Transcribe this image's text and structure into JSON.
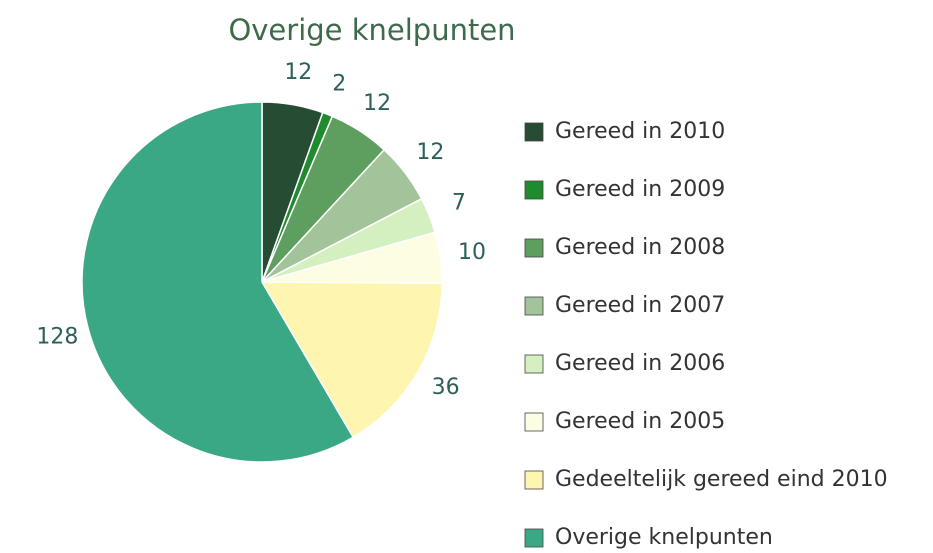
{
  "chart_data": {
    "type": "pie",
    "title": "Overige knelpunten",
    "categories": [
      "Gereed in 2010",
      "Gereed in 2009",
      "Gereed in 2008",
      "Gereed in 2007",
      "Gereed in 2006",
      "Gereed in 2005",
      "Gedeeltelijk gereed eind 2010",
      "Overige knelpunten"
    ],
    "values": [
      12,
      2,
      12,
      12,
      7,
      10,
      36,
      128
    ],
    "colors": [
      "#264d33",
      "#1e8c2e",
      "#5e9e5e",
      "#a3c49a",
      "#d4f0c0",
      "#fdfde4",
      "#fdf5b0",
      "#3aa884"
    ]
  }
}
